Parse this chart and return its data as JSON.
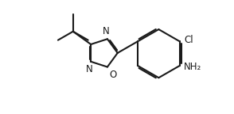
{
  "bg_color": "#ffffff",
  "line_color": "#1a1a1a",
  "text_color": "#1a1a1a",
  "line_width": 1.5,
  "font_size": 8.5,
  "figsize": [
    2.94,
    1.44
  ],
  "dpi": 100,
  "xlim": [
    0,
    10
  ],
  "ylim": [
    0,
    4.9
  ]
}
